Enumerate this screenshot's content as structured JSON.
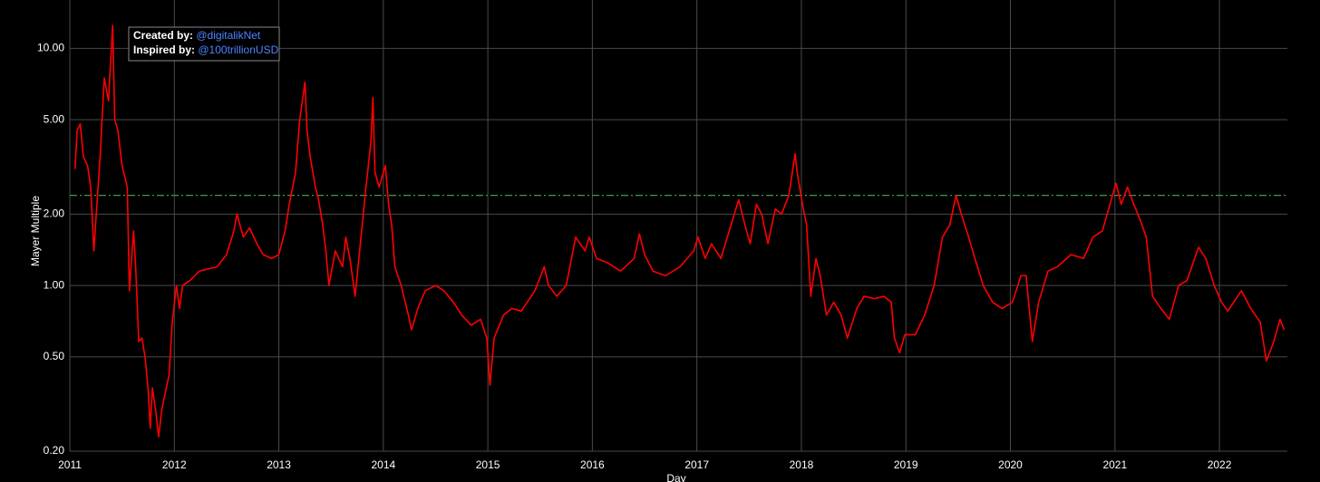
{
  "chart_data": {
    "type": "line",
    "x_label": "Day",
    "y_label": "Mayer Multiple",
    "log_y": true,
    "grid": true,
    "background": "#000000",
    "xlim": [
      2011,
      2022.65
    ],
    "xticks": [
      2011,
      2012,
      2013,
      2014,
      2015,
      2016,
      2017,
      2018,
      2019,
      2020,
      2021,
      2022
    ],
    "ylim": [
      0.2,
      16
    ],
    "yticks": [
      {
        "value": 0.2,
        "label": "0.20"
      },
      {
        "value": 0.5,
        "label": "0.50"
      },
      {
        "value": 1,
        "label": "1.00"
      },
      {
        "value": 2,
        "label": "2.00"
      },
      {
        "value": 5,
        "label": "5.00"
      },
      {
        "value": 10,
        "label": "10.00"
      }
    ],
    "reference_line": {
      "value": 2.4,
      "color": "#3d9c4a",
      "style": "dashdot"
    },
    "annotation": {
      "created_label": "Created by:",
      "created_handle": "@digitalikNet",
      "inspired_label": "Inspired by:",
      "inspired_handle": "@100trillionUSD",
      "handle_color": "#4d84ff"
    },
    "x": [
      2011.05,
      2011.07,
      2011.1,
      2011.13,
      2011.17,
      2011.2,
      2011.23,
      2011.29,
      2011.33,
      2011.37,
      2011.41,
      2011.43,
      2011.46,
      2011.5,
      2011.55,
      2011.57,
      2011.61,
      2011.63,
      2011.66,
      2011.69,
      2011.72,
      2011.75,
      2011.77,
      2011.79,
      2011.82,
      2011.85,
      2011.88,
      2011.95,
      2011.98,
      2012.02,
      2012.05,
      2012.08,
      2012.15,
      2012.24,
      2012.41,
      2012.5,
      2012.57,
      2012.6,
      2012.66,
      2012.72,
      2012.79,
      2012.85,
      2012.93,
      2013.0,
      2013.06,
      2013.1,
      2013.16,
      2013.2,
      2013.25,
      2013.27,
      2013.3,
      2013.35,
      2013.38,
      2013.42,
      2013.45,
      2013.48,
      2013.54,
      2013.61,
      2013.64,
      2013.68,
      2013.73,
      2013.78,
      2013.83,
      2013.88,
      2013.9,
      2013.92,
      2013.96,
      2014.0,
      2014.02,
      2014.05,
      2014.08,
      2014.11,
      2014.17,
      2014.24,
      2014.27,
      2014.33,
      2014.4,
      2014.5,
      2014.58,
      2014.67,
      2014.75,
      2014.84,
      2014.93,
      2014.99,
      2015.02,
      2015.06,
      2015.15,
      2015.23,
      2015.32,
      2015.45,
      2015.54,
      2015.58,
      2015.66,
      2015.75,
      2015.84,
      2015.93,
      2015.97,
      2016.04,
      2016.14,
      2016.27,
      2016.4,
      2016.45,
      2016.5,
      2016.58,
      2016.7,
      2016.84,
      2016.97,
      2017.01,
      2017.08,
      2017.14,
      2017.23,
      2017.31,
      2017.4,
      2017.46,
      2017.51,
      2017.57,
      2017.62,
      2017.68,
      2017.75,
      2017.81,
      2017.88,
      2017.94,
      2017.96,
      2018.01,
      2018.05,
      2018.09,
      2018.14,
      2018.18,
      2018.24,
      2018.31,
      2018.38,
      2018.44,
      2018.53,
      2018.6,
      2018.7,
      2018.79,
      2018.86,
      2018.89,
      2018.94,
      2018.99,
      2019.09,
      2019.18,
      2019.27,
      2019.35,
      2019.42,
      2019.48,
      2019.53,
      2019.6,
      2019.66,
      2019.74,
      2019.83,
      2019.92,
      2020.02,
      2020.1,
      2020.15,
      2020.21,
      2020.27,
      2020.36,
      2020.45,
      2020.58,
      2020.7,
      2020.79,
      2020.88,
      2020.94,
      2021.01,
      2021.06,
      2021.12,
      2021.18,
      2021.24,
      2021.3,
      2021.36,
      2021.44,
      2021.52,
      2021.61,
      2021.69,
      2021.8,
      2021.87,
      2021.95,
      2022.02,
      2022.08,
      2022.21,
      2022.3,
      2022.39,
      2022.45,
      2022.52,
      2022.58,
      2022.62
    ],
    "series": [
      {
        "name": "Mayer Multiple",
        "color": "#ff0000",
        "values": [
          3.1,
          4.5,
          4.8,
          3.5,
          3.2,
          2.6,
          1.4,
          3.5,
          7.5,
          6.0,
          12.5,
          5.0,
          4.5,
          3.2,
          2.6,
          0.95,
          1.7,
          1.2,
          0.58,
          0.6,
          0.5,
          0.36,
          0.25,
          0.37,
          0.3,
          0.23,
          0.3,
          0.42,
          0.7,
          1.0,
          0.8,
          1.0,
          1.05,
          1.15,
          1.2,
          1.35,
          1.7,
          2.0,
          1.6,
          1.75,
          1.5,
          1.35,
          1.3,
          1.35,
          1.7,
          2.2,
          3.0,
          5.0,
          7.2,
          4.5,
          3.5,
          2.6,
          2.3,
          1.8,
          1.4,
          1.0,
          1.4,
          1.2,
          1.6,
          1.3,
          0.9,
          1.5,
          2.5,
          4.0,
          6.2,
          3.0,
          2.6,
          3.0,
          3.2,
          2.2,
          1.8,
          1.2,
          1.0,
          0.75,
          0.65,
          0.8,
          0.95,
          1.0,
          0.95,
          0.85,
          0.75,
          0.68,
          0.72,
          0.6,
          0.38,
          0.6,
          0.75,
          0.8,
          0.78,
          0.95,
          1.2,
          1.0,
          0.9,
          1.0,
          1.6,
          1.4,
          1.6,
          1.3,
          1.25,
          1.15,
          1.3,
          1.65,
          1.35,
          1.15,
          1.1,
          1.2,
          1.4,
          1.6,
          1.3,
          1.5,
          1.3,
          1.7,
          2.3,
          1.8,
          1.5,
          2.2,
          2.0,
          1.5,
          2.1,
          2.0,
          2.4,
          3.6,
          3.0,
          2.2,
          1.8,
          0.9,
          1.3,
          1.1,
          0.75,
          0.85,
          0.75,
          0.6,
          0.8,
          0.9,
          0.88,
          0.9,
          0.85,
          0.6,
          0.52,
          0.62,
          0.62,
          0.75,
          1.0,
          1.6,
          1.8,
          2.4,
          2.0,
          1.6,
          1.3,
          1.0,
          0.85,
          0.8,
          0.85,
          1.1,
          1.1,
          0.58,
          0.85,
          1.15,
          1.2,
          1.35,
          1.3,
          1.6,
          1.7,
          2.1,
          2.7,
          2.2,
          2.6,
          2.2,
          1.9,
          1.6,
          0.9,
          0.8,
          0.72,
          1.0,
          1.05,
          1.45,
          1.3,
          1.0,
          0.85,
          0.78,
          0.95,
          0.8,
          0.7,
          0.48,
          0.58,
          0.72,
          0.65
        ]
      }
    ]
  }
}
